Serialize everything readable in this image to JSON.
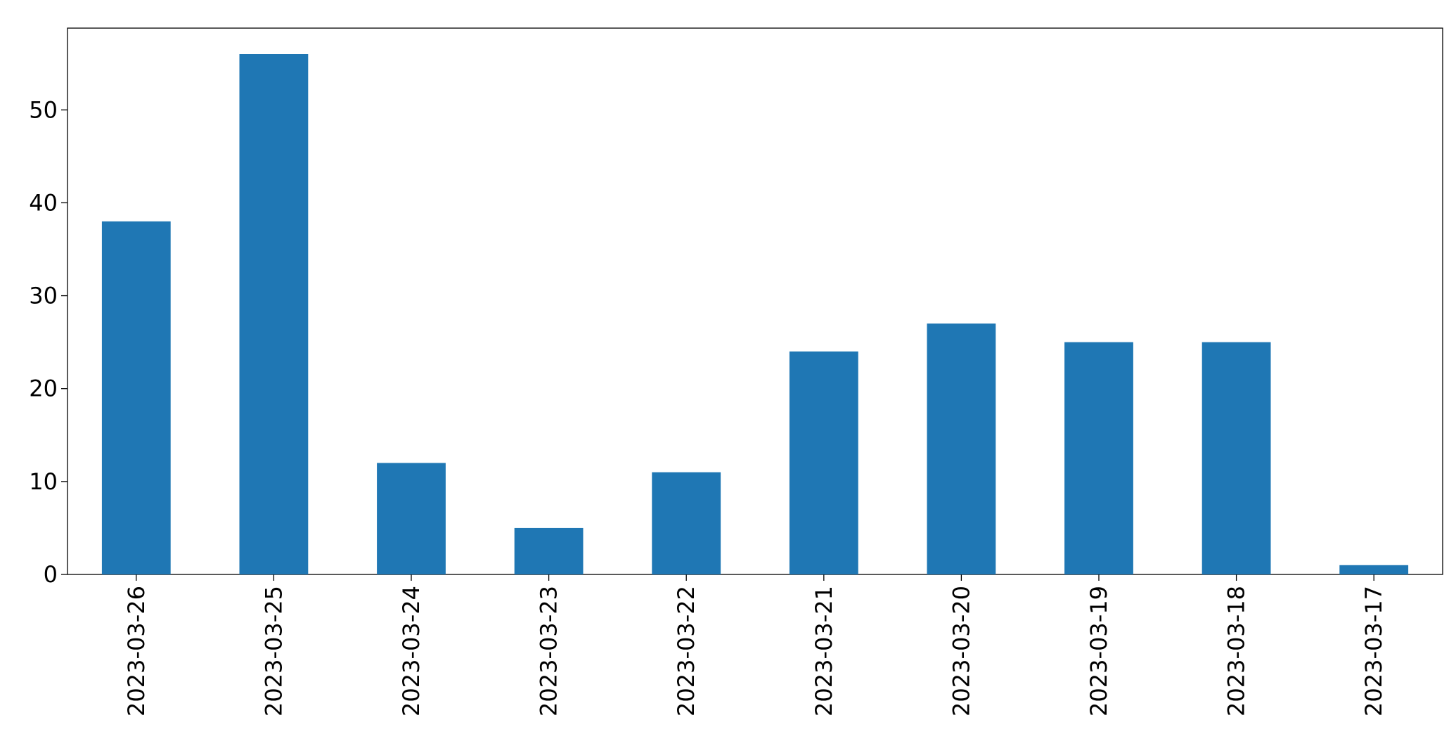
{
  "chart_data": {
    "type": "bar",
    "categories": [
      "2023-03-26",
      "2023-03-25",
      "2023-03-24",
      "2023-03-23",
      "2023-03-22",
      "2023-03-21",
      "2023-03-20",
      "2023-03-19",
      "2023-03-18",
      "2023-03-17"
    ],
    "values": [
      38,
      56,
      12,
      5,
      11,
      24,
      27,
      25,
      25,
      1
    ],
    "color": "#1f77b4",
    "ylim": [
      0,
      58.8
    ],
    "yticks": [
      0,
      10,
      20,
      30,
      40,
      50
    ],
    "grid": false
  }
}
